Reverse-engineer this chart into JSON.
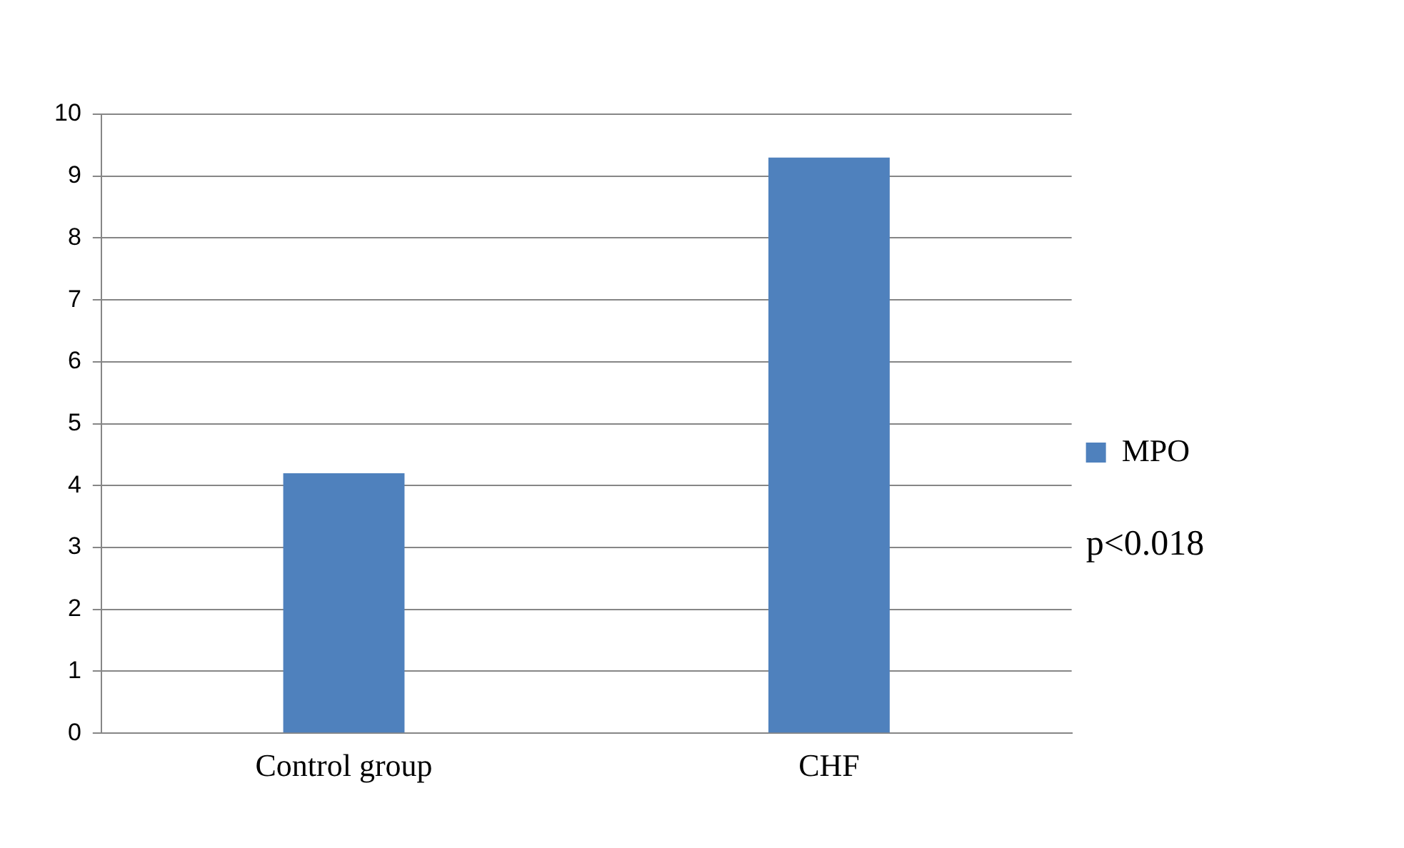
{
  "chart_data": {
    "type": "bar",
    "categories": [
      "Control group",
      "CHF"
    ],
    "series": [
      {
        "name": "MPO",
        "color": "#4f81bd",
        "values": [
          4.2,
          9.3
        ]
      }
    ],
    "ylim": [
      0,
      10
    ],
    "yticks": [
      0,
      1,
      2,
      3,
      4,
      5,
      6,
      7,
      8,
      9,
      10
    ],
    "grid": "y",
    "legend": "right",
    "annotations": [
      "p<0.018"
    ]
  }
}
